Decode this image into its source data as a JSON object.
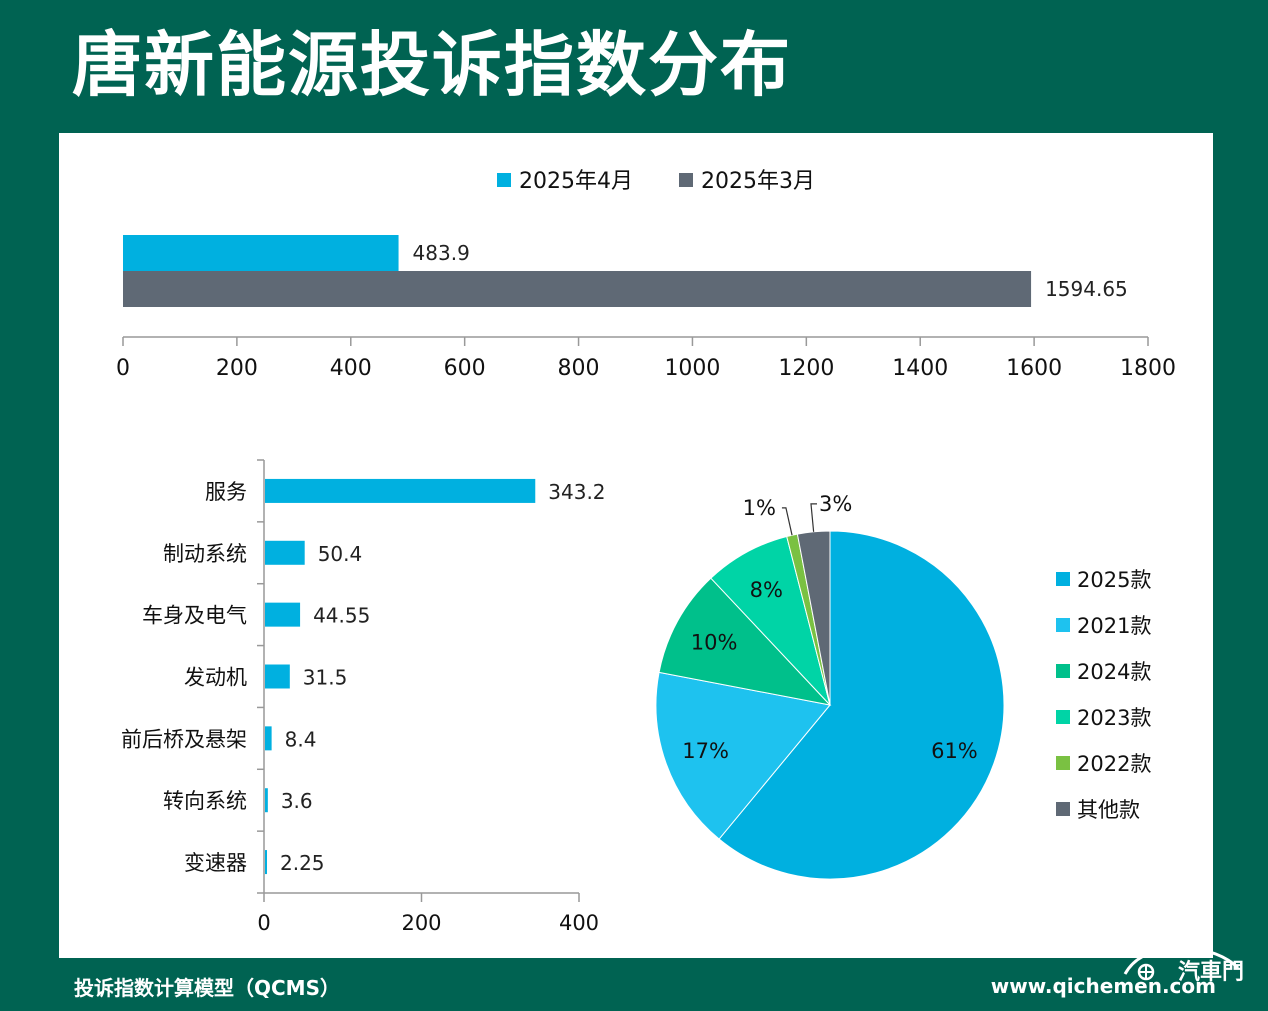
{
  "title": "唐新能源投诉指数分布",
  "footer": {
    "left": "投诉指数计算模型（QCMS）",
    "right": "www.qichemen.com",
    "logo_text": "汽車門"
  },
  "colors": {
    "background": "#006352",
    "apr": "#00b0e0",
    "mar": "#5f6975",
    "pie": [
      "#00b0e0",
      "#1ec2ef",
      "#00c08b",
      "#00d4a6",
      "#7ac142",
      "#5f6975"
    ]
  },
  "chart_data": [
    {
      "type": "bar",
      "orientation": "horizontal",
      "categories": [
        ""
      ],
      "series": [
        {
          "name": "2025年4月",
          "values": [
            483.9
          ],
          "labels": [
            "483.9"
          ]
        },
        {
          "name": "2025年3月",
          "values": [
            1594.65
          ],
          "labels": [
            "1594.65"
          ]
        }
      ],
      "xlim": [
        0,
        1800
      ],
      "xticks": [
        "0",
        "200",
        "400",
        "600",
        "800",
        "1000",
        "1200",
        "1400",
        "1600",
        "1800"
      ],
      "legend": "top-center",
      "grid": false
    },
    {
      "type": "bar",
      "orientation": "horizontal",
      "categories": [
        "服务",
        "制动系统",
        "车身及电气",
        "发动机",
        "前后桥及悬架",
        "转向系统",
        "变速器"
      ],
      "values": [
        343.2,
        50.4,
        44.55,
        31.5,
        8.4,
        3.6,
        2.25
      ],
      "labels": [
        "343.2",
        "50.4",
        "44.55",
        "31.5",
        "8.4",
        "3.6",
        "2.25"
      ],
      "xlim": [
        0,
        400
      ],
      "xticks": [
        "0",
        "200",
        "400"
      ],
      "grid": false
    },
    {
      "type": "pie",
      "categories": [
        "2025款",
        "2021款",
        "2024款",
        "2023款",
        "2022款",
        "其他款"
      ],
      "values": [
        61,
        17,
        10,
        8,
        1,
        3
      ],
      "labels": [
        "61%",
        "17%",
        "10%",
        "8%",
        "1%",
        "3%"
      ],
      "legend": "right"
    }
  ]
}
